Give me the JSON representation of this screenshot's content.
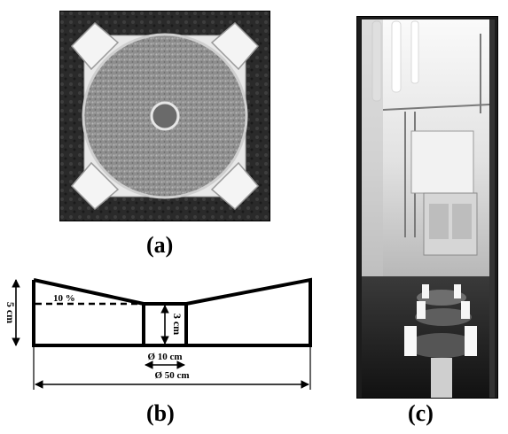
{
  "panels": {
    "a": {
      "label": "(a)"
    },
    "b": {
      "label": "(b)",
      "dim_height": "5 cm",
      "dim_slope": "10 %",
      "dim_inner_height": "3 cm",
      "dim_inner_diameter": "Ø 10 cm",
      "dim_outer_diameter": "Ø 50 cm"
    },
    "c": {
      "label": "(c)"
    }
  }
}
